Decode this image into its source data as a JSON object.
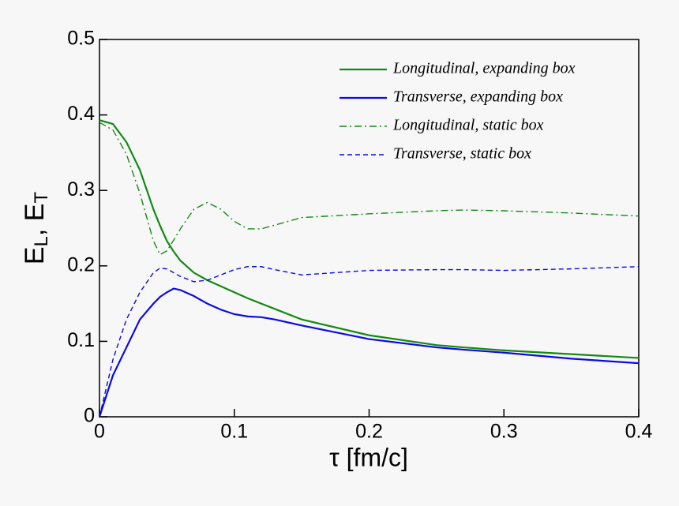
{
  "chart_data": {
    "type": "line",
    "xlabel": "τ [fm/c]",
    "ylabel": [
      "E",
      "L",
      ", E",
      "T"
    ],
    "x": [
      0,
      0.01,
      0.02,
      0.03,
      0.04,
      0.045,
      0.05,
      0.055,
      0.06,
      0.07,
      0.08,
      0.09,
      0.1,
      0.11,
      0.12,
      0.13,
      0.15,
      0.2,
      0.25,
      0.27,
      0.3,
      0.35,
      0.4
    ],
    "series": [
      {
        "name": "Longitudinal, expanding box",
        "color": "#128a12",
        "style": "solid",
        "values": [
          0.393,
          0.388,
          0.364,
          0.327,
          0.275,
          0.253,
          0.233,
          0.219,
          0.207,
          0.191,
          0.181,
          0.173,
          0.165,
          0.157,
          0.15,
          0.143,
          0.129,
          0.108,
          0.095,
          0.092,
          0.088,
          0.083,
          0.078
        ]
      },
      {
        "name": "Transverse, expanding box",
        "color": "#0a0ae6",
        "style": "solid",
        "values": [
          0,
          0.055,
          0.092,
          0.129,
          0.15,
          0.159,
          0.165,
          0.17,
          0.168,
          0.16,
          0.15,
          0.142,
          0.136,
          0.133,
          0.132,
          0.129,
          0.121,
          0.103,
          0.092,
          0.089,
          0.085,
          0.077,
          0.071
        ]
      },
      {
        "name": "Longitudinal, static box",
        "color": "#128a12",
        "style": "dashdot",
        "values": [
          0.39,
          0.38,
          0.348,
          0.296,
          0.233,
          0.215,
          0.22,
          0.234,
          0.249,
          0.275,
          0.284,
          0.275,
          0.259,
          0.249,
          0.249,
          0.254,
          0.264,
          0.269,
          0.273,
          0.274,
          0.273,
          0.27,
          0.266
        ]
      },
      {
        "name": "Transverse, static box",
        "color": "#0a0ae6",
        "style": "dashed",
        "values": [
          0,
          0.076,
          0.129,
          0.165,
          0.191,
          0.197,
          0.196,
          0.191,
          0.186,
          0.179,
          0.181,
          0.188,
          0.195,
          0.199,
          0.199,
          0.195,
          0.188,
          0.194,
          0.195,
          0.195,
          0.194,
          0.196,
          0.199
        ]
      }
    ],
    "xlim": [
      0,
      0.4
    ],
    "xticks": [
      0,
      0.1,
      0.2,
      0.3,
      0.4
    ],
    "ylim": [
      0,
      0.5
    ],
    "yticks": [
      0,
      0.1,
      0.2,
      0.3,
      0.4,
      0.5
    ],
    "legend": "upper right",
    "grid": false
  }
}
